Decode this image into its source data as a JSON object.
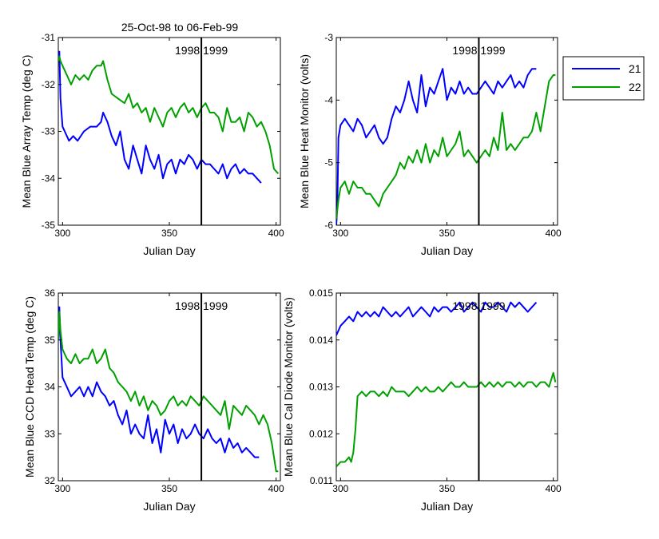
{
  "figure": {
    "title": "25-Oct-98 to 06-Feb-99"
  },
  "legend": {
    "placement": "top-right, outside plots",
    "entries": [
      {
        "label": "21",
        "color": "#0000ff"
      },
      {
        "label": "22",
        "color": "#00a000"
      }
    ]
  },
  "chart_data": [
    {
      "type": "line",
      "ylabel": "Mean Blue Array Temp (deg C)",
      "xlabel": "Julian Day",
      "xlim": [
        298,
        402
      ],
      "ylim": [
        -35,
        -31
      ],
      "xticks": [
        "300",
        "350",
        "400"
      ],
      "yticks": [
        "-35",
        "-34",
        "-33",
        "-32",
        "-31"
      ],
      "year_marker": {
        "x": 365,
        "label": "1998 1999"
      },
      "series": [
        {
          "name": "21",
          "color": "#0000ff",
          "x": [
            298,
            298.5,
            299,
            300,
            301,
            303,
            305,
            307,
            310,
            313,
            316,
            318,
            319,
            321,
            323,
            325,
            327,
            329,
            331,
            333,
            335,
            337,
            339,
            341,
            343,
            345,
            347,
            349,
            351,
            353,
            355,
            357,
            359,
            361,
            363,
            365,
            367,
            369,
            371,
            373,
            375,
            377,
            379,
            381,
            383,
            385,
            387,
            389,
            391,
            393
          ],
          "y": [
            -31.5,
            -31.3,
            -32.3,
            -32.9,
            -33.0,
            -33.2,
            -33.1,
            -33.2,
            -33.0,
            -32.9,
            -32.9,
            -32.8,
            -32.6,
            -32.8,
            -33.1,
            -33.3,
            -33.0,
            -33.6,
            -33.8,
            -33.3,
            -33.6,
            -33.9,
            -33.3,
            -33.6,
            -33.8,
            -33.5,
            -34.0,
            -33.7,
            -33.6,
            -33.9,
            -33.6,
            -33.7,
            -33.5,
            -33.6,
            -33.8,
            -33.6,
            -33.7,
            -33.7,
            -33.8,
            -33.9,
            -33.7,
            -34.0,
            -33.8,
            -33.7,
            -33.9,
            -33.8,
            -33.9,
            -33.9,
            -34.0,
            -34.1
          ]
        },
        {
          "name": "22",
          "color": "#00a000",
          "x": [
            298,
            298.5,
            299,
            300,
            302,
            304,
            306,
            308,
            310,
            312,
            314,
            316,
            318,
            319,
            321,
            323,
            326,
            329,
            331,
            333,
            335,
            337,
            339,
            341,
            343,
            345,
            347,
            349,
            351,
            353,
            355,
            357,
            359,
            361,
            363,
            365,
            367,
            369,
            371,
            373,
            375,
            377,
            379,
            381,
            383,
            385,
            387,
            389,
            391,
            393,
            395,
            397,
            399,
            401
          ],
          "y": [
            -31.5,
            -31.4,
            -31.5,
            -31.6,
            -31.8,
            -32.0,
            -31.8,
            -31.9,
            -31.8,
            -31.9,
            -31.7,
            -31.6,
            -31.6,
            -31.5,
            -31.9,
            -32.2,
            -32.3,
            -32.4,
            -32.2,
            -32.5,
            -32.4,
            -32.6,
            -32.5,
            -32.8,
            -32.5,
            -32.7,
            -32.9,
            -32.6,
            -32.5,
            -32.7,
            -32.5,
            -32.4,
            -32.6,
            -32.5,
            -32.7,
            -32.5,
            -32.4,
            -32.6,
            -32.6,
            -32.7,
            -33.0,
            -32.5,
            -32.8,
            -32.8,
            -32.7,
            -33.0,
            -32.6,
            -32.7,
            -32.9,
            -32.8,
            -33.0,
            -33.3,
            -33.8,
            -33.9
          ]
        }
      ]
    },
    {
      "type": "line",
      "ylabel": "Mean Blue Heat Monitor (volts)",
      "xlabel": "Julian Day",
      "xlim": [
        298,
        402
      ],
      "ylim": [
        -6,
        -3
      ],
      "xticks": [
        "300",
        "350",
        "400"
      ],
      "yticks": [
        "-6",
        "-5",
        "-4",
        "-3"
      ],
      "year_marker": {
        "x": 365,
        "label": "1998 1999"
      },
      "series": [
        {
          "name": "21",
          "color": "#0000ff",
          "x": [
            298,
            298.5,
            299,
            300,
            302,
            304,
            306,
            308,
            310,
            312,
            314,
            316,
            318,
            320,
            322,
            324,
            326,
            328,
            330,
            332,
            334,
            336,
            338,
            340,
            342,
            344,
            346,
            348,
            350,
            352,
            354,
            356,
            358,
            360,
            362,
            364,
            366,
            368,
            370,
            372,
            374,
            376,
            378,
            380,
            382,
            384,
            386,
            388,
            390,
            392
          ],
          "y": [
            -6.0,
            -5.7,
            -4.6,
            -4.4,
            -4.3,
            -4.4,
            -4.5,
            -4.3,
            -4.4,
            -4.6,
            -4.5,
            -4.4,
            -4.6,
            -4.7,
            -4.6,
            -4.3,
            -4.1,
            -4.2,
            -4.0,
            -3.7,
            -4.0,
            -4.2,
            -3.6,
            -4.1,
            -3.8,
            -3.9,
            -3.7,
            -3.5,
            -4.0,
            -3.8,
            -3.9,
            -3.7,
            -3.9,
            -3.8,
            -3.9,
            -3.9,
            -3.8,
            -3.7,
            -3.8,
            -3.9,
            -3.7,
            -3.8,
            -3.7,
            -3.6,
            -3.8,
            -3.7,
            -3.8,
            -3.6,
            -3.5,
            -3.5
          ]
        },
        {
          "name": "22",
          "color": "#00a000",
          "x": [
            298,
            299,
            300,
            302,
            304,
            306,
            308,
            310,
            312,
            314,
            316,
            318,
            320,
            322,
            324,
            326,
            328,
            330,
            332,
            334,
            336,
            338,
            340,
            342,
            344,
            346,
            348,
            350,
            352,
            354,
            356,
            358,
            360,
            362,
            364,
            366,
            368,
            370,
            372,
            374,
            376,
            378,
            380,
            382,
            384,
            386,
            388,
            390,
            392,
            394,
            396,
            398,
            400,
            401
          ],
          "y": [
            -5.9,
            -5.6,
            -5.4,
            -5.3,
            -5.5,
            -5.3,
            -5.4,
            -5.4,
            -5.5,
            -5.5,
            -5.6,
            -5.7,
            -5.5,
            -5.4,
            -5.3,
            -5.2,
            -5.0,
            -5.1,
            -4.9,
            -5.0,
            -4.8,
            -5.0,
            -4.7,
            -5.0,
            -4.8,
            -4.9,
            -4.6,
            -4.9,
            -4.8,
            -4.7,
            -4.5,
            -4.9,
            -4.8,
            -4.9,
            -5.0,
            -4.9,
            -4.8,
            -4.9,
            -4.6,
            -4.8,
            -4.2,
            -4.8,
            -4.7,
            -4.8,
            -4.7,
            -4.6,
            -4.6,
            -4.5,
            -4.2,
            -4.5,
            -4.1,
            -3.7,
            -3.6,
            -3.6
          ]
        }
      ]
    },
    {
      "type": "line",
      "ylabel": "Mean Blue CCD Head Temp (deg C)",
      "xlabel": "Julian Day",
      "xlim": [
        298,
        402
      ],
      "ylim": [
        32,
        36
      ],
      "xticks": [
        "300",
        "350",
        "400"
      ],
      "yticks": [
        "32",
        "33",
        "34",
        "35",
        "36"
      ],
      "year_marker": {
        "x": 365,
        "label": "1998 1999"
      },
      "series": [
        {
          "name": "21",
          "color": "#0000ff",
          "x": [
            298,
            298.5,
            299,
            300,
            302,
            304,
            306,
            308,
            310,
            312,
            314,
            316,
            318,
            320,
            322,
            324,
            326,
            328,
            330,
            332,
            334,
            336,
            338,
            340,
            342,
            344,
            346,
            348,
            350,
            352,
            354,
            356,
            358,
            360,
            362,
            364,
            366,
            368,
            370,
            372,
            374,
            376,
            378,
            380,
            382,
            384,
            386,
            388,
            390,
            392
          ],
          "y": [
            35.0,
            35.7,
            35.0,
            34.2,
            34.0,
            33.8,
            33.9,
            34.0,
            33.8,
            34.0,
            33.8,
            34.1,
            33.9,
            33.8,
            33.6,
            33.7,
            33.4,
            33.2,
            33.5,
            33.0,
            33.2,
            33.0,
            32.9,
            33.4,
            32.8,
            33.1,
            32.6,
            33.3,
            33.0,
            33.2,
            32.8,
            33.1,
            32.9,
            33.0,
            33.2,
            33.0,
            32.9,
            33.1,
            32.9,
            32.8,
            32.9,
            32.6,
            32.9,
            32.7,
            32.8,
            32.6,
            32.7,
            32.6,
            32.5,
            32.5
          ]
        },
        {
          "name": "22",
          "color": "#00a000",
          "x": [
            298,
            298.5,
            299,
            300,
            302,
            304,
            306,
            308,
            310,
            312,
            314,
            316,
            318,
            320,
            322,
            324,
            326,
            328,
            330,
            332,
            334,
            336,
            338,
            340,
            342,
            344,
            346,
            348,
            350,
            352,
            354,
            356,
            358,
            360,
            362,
            364,
            366,
            368,
            370,
            372,
            374,
            376,
            378,
            380,
            382,
            384,
            386,
            388,
            390,
            392,
            394,
            396,
            398,
            400,
            401
          ],
          "y": [
            35.0,
            35.6,
            35.2,
            34.8,
            34.6,
            34.5,
            34.7,
            34.5,
            34.6,
            34.6,
            34.8,
            34.5,
            34.6,
            34.8,
            34.4,
            34.3,
            34.1,
            34.0,
            33.9,
            33.7,
            33.9,
            33.6,
            33.8,
            33.5,
            33.7,
            33.6,
            33.4,
            33.5,
            33.7,
            33.8,
            33.6,
            33.7,
            33.6,
            33.8,
            33.7,
            33.6,
            33.8,
            33.7,
            33.6,
            33.5,
            33.4,
            33.7,
            33.1,
            33.6,
            33.5,
            33.4,
            33.6,
            33.5,
            33.4,
            33.2,
            33.4,
            33.2,
            32.8,
            32.2,
            32.2
          ]
        }
      ]
    },
    {
      "type": "line",
      "ylabel": "Mean Blue Cal Diode Monitor (volts)",
      "xlabel": "Julian Day",
      "xlim": [
        298,
        402
      ],
      "ylim": [
        0.011,
        0.015
      ],
      "xticks": [
        "300",
        "350",
        "400"
      ],
      "yticks": [
        "0.011",
        "0.012",
        "0.013",
        "0.014",
        "0.015"
      ],
      "year_marker": {
        "x": 365,
        "label": "1998 1999"
      },
      "series": [
        {
          "name": "21",
          "color": "#0000ff",
          "x": [
            298,
            299,
            300,
            302,
            304,
            306,
            308,
            310,
            312,
            314,
            316,
            318,
            320,
            322,
            324,
            326,
            328,
            330,
            332,
            334,
            336,
            338,
            340,
            342,
            344,
            346,
            348,
            350,
            352,
            354,
            356,
            358,
            360,
            362,
            364,
            366,
            368,
            370,
            372,
            374,
            376,
            378,
            380,
            382,
            384,
            386,
            388,
            390,
            392
          ],
          "y": [
            0.0141,
            0.0142,
            0.0143,
            0.0144,
            0.0145,
            0.0144,
            0.0146,
            0.0145,
            0.0146,
            0.0145,
            0.0146,
            0.0145,
            0.0147,
            0.0146,
            0.0145,
            0.0146,
            0.0145,
            0.0146,
            0.0147,
            0.0145,
            0.0146,
            0.0147,
            0.0146,
            0.0145,
            0.0147,
            0.0146,
            0.0147,
            0.0147,
            0.0146,
            0.0147,
            0.0148,
            0.0146,
            0.0147,
            0.0148,
            0.0147,
            0.0146,
            0.0148,
            0.0147,
            0.0147,
            0.0148,
            0.0147,
            0.0146,
            0.0148,
            0.0147,
            0.0148,
            0.0147,
            0.0146,
            0.0147,
            0.0148
          ]
        },
        {
          "name": "22",
          "color": "#00a000",
          "x": [
            298,
            300,
            302,
            304,
            305,
            306,
            307,
            308,
            310,
            312,
            314,
            316,
            318,
            320,
            322,
            324,
            326,
            328,
            330,
            332,
            334,
            336,
            338,
            340,
            342,
            344,
            346,
            348,
            350,
            352,
            354,
            356,
            358,
            360,
            362,
            364,
            366,
            368,
            370,
            372,
            374,
            376,
            378,
            380,
            382,
            384,
            386,
            388,
            390,
            392,
            394,
            396,
            398,
            400,
            401
          ],
          "y": [
            0.0113,
            0.0114,
            0.0114,
            0.0115,
            0.0114,
            0.0116,
            0.0121,
            0.0128,
            0.0129,
            0.0128,
            0.0129,
            0.0129,
            0.0128,
            0.0129,
            0.0128,
            0.013,
            0.0129,
            0.0129,
            0.0129,
            0.0128,
            0.0129,
            0.013,
            0.0129,
            0.013,
            0.0129,
            0.0129,
            0.013,
            0.0129,
            0.013,
            0.0131,
            0.013,
            0.013,
            0.0131,
            0.013,
            0.013,
            0.013,
            0.0131,
            0.013,
            0.0131,
            0.013,
            0.0131,
            0.013,
            0.0131,
            0.0131,
            0.013,
            0.0131,
            0.013,
            0.0131,
            0.0131,
            0.013,
            0.0131,
            0.0131,
            0.013,
            0.0133,
            0.0131
          ]
        }
      ]
    }
  ]
}
